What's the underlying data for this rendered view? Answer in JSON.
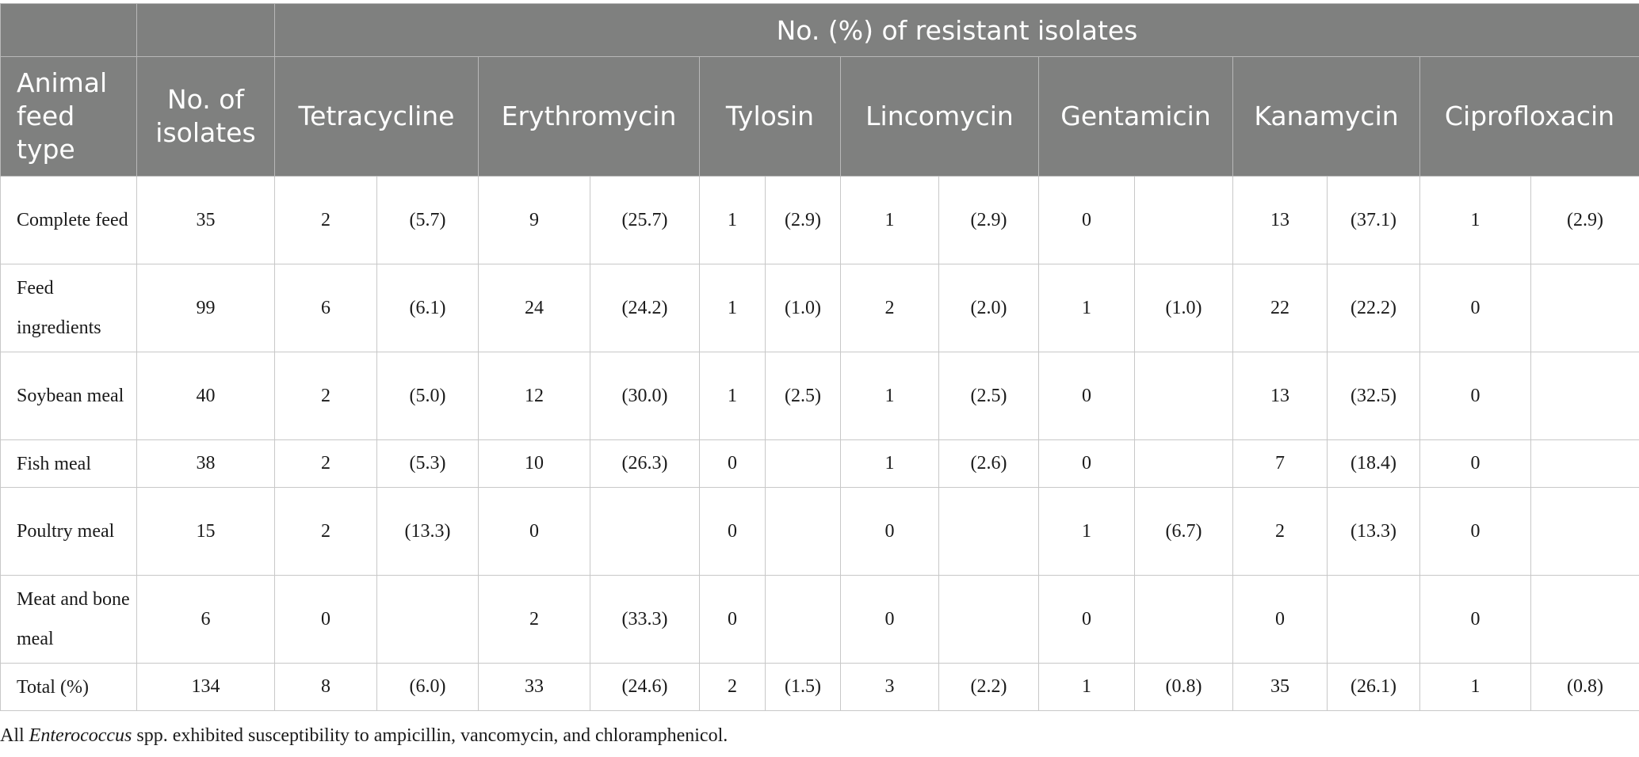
{
  "header": {
    "group_title": "No. (%) of resistant isolates",
    "feed_type": "Animal feed type",
    "isolates": "No. of isolates",
    "antibiotics": [
      "Tetracycline",
      "Erythromycin",
      "Tylosin",
      "Lincomycin",
      "Gentamicin",
      "Kanamycin",
      "Ciprofloxacin"
    ]
  },
  "rows": [
    {
      "label": "Complete feed",
      "isolates": "35",
      "cells": [
        "2",
        "(5.7)",
        "9",
        "(25.7)",
        "1",
        "(2.9)",
        "1",
        "(2.9)",
        "0",
        "",
        "13",
        "(37.1)",
        "1",
        "(2.9)"
      ]
    },
    {
      "label": "Feed ingredients",
      "isolates": "99",
      "cells": [
        "6",
        "(6.1)",
        "24",
        "(24.2)",
        "1",
        "(1.0)",
        "2",
        "(2.0)",
        "1",
        "(1.0)",
        "22",
        "(22.2)",
        "0",
        ""
      ]
    },
    {
      "label": "Soybean meal",
      "isolates": "40",
      "cells": [
        "2",
        "(5.0)",
        "12",
        "(30.0)",
        "1",
        "(2.5)",
        "1",
        "(2.5)",
        "0",
        "",
        "13",
        "(32.5)",
        "0",
        ""
      ]
    },
    {
      "label": "Fish meal",
      "isolates": "38",
      "cells": [
        "2",
        "(5.3)",
        "10",
        "(26.3)",
        "0",
        "",
        "1",
        "(2.6)",
        "0",
        "",
        "7",
        "(18.4)",
        "0",
        ""
      ]
    },
    {
      "label": "Poultry meal",
      "isolates": "15",
      "cells": [
        "2",
        "(13.3)",
        "0",
        "",
        "0",
        "",
        "0",
        "",
        "1",
        "(6.7)",
        "2",
        "(13.3)",
        "0",
        ""
      ]
    },
    {
      "label": "Meat and bone meal",
      "isolates": "6",
      "cells": [
        "0",
        "",
        "2",
        "(33.3)",
        "0",
        "",
        "0",
        "",
        "0",
        "",
        "0",
        "",
        "0",
        ""
      ]
    },
    {
      "label": "Total (%)",
      "isolates": "134",
      "cells": [
        "8",
        "(6.0)",
        "33",
        "(24.6)",
        "2",
        "(1.5)",
        "3",
        "(2.2)",
        "1",
        "(0.8)",
        "35",
        "(26.1)",
        "1",
        "(0.8)"
      ]
    }
  ],
  "footnote": {
    "prefix": "All ",
    "organism": "Enterococcus",
    "suffix": " spp. exhibited susceptibility to ampicillin, vancomycin, and chloramphenicol."
  }
}
